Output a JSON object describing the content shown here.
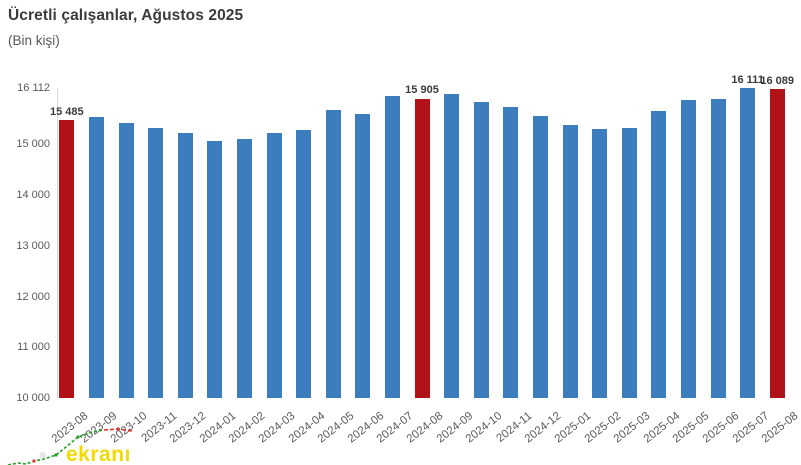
{
  "header": {
    "title": "Ücretli çalışanlar, Ağustos 2025",
    "subtitle": "(Bin kişi)"
  },
  "chart_data": {
    "type": "bar",
    "title": "Ücretli çalışanlar, Ağustos 2025",
    "unit_label": "(Bin kişi)",
    "categories": [
      "2023-08",
      "2023-09",
      "2023-10",
      "2023-11",
      "2023-12",
      "2024-01",
      "2024-02",
      "2024-03",
      "2024-04",
      "2024-05",
      "2024-06",
      "2024-07",
      "2024-08",
      "2024-09",
      "2024-10",
      "2024-11",
      "2024-12",
      "2025-01",
      "2025-02",
      "2025-03",
      "2025-04",
      "2025-05",
      "2025-06",
      "2025-07",
      "2025-08"
    ],
    "values": [
      15485,
      15550,
      15430,
      15320,
      15220,
      15060,
      15110,
      15230,
      15280,
      15680,
      15600,
      15960,
      15905,
      15990,
      15840,
      15730,
      15560,
      15390,
      15300,
      15330,
      15650,
      15880,
      15900,
      16111,
      16089
    ],
    "highlighted_indices": [
      0,
      12,
      24
    ],
    "data_labels": [
      {
        "index": 0,
        "text": "15 485"
      },
      {
        "index": 12,
        "text": "15 905"
      },
      {
        "index": 23,
        "text": "16 111"
      },
      {
        "index": 24,
        "text": "16 089"
      }
    ],
    "ylim": [
      10000,
      16112
    ],
    "yticks": [
      {
        "value": 16112,
        "label": "16 112"
      },
      {
        "value": 15000,
        "label": "15 000"
      },
      {
        "value": 14000,
        "label": "14 000"
      },
      {
        "value": 13000,
        "label": "13 000"
      },
      {
        "value": 12000,
        "label": "12 000"
      },
      {
        "value": 11000,
        "label": "11 000"
      },
      {
        "value": 10000,
        "label": "10 000"
      }
    ],
    "grid": false,
    "legend": null,
    "colors": {
      "bar_default": "#3b7dbd",
      "bar_highlight": "#b01218",
      "axis_text": "#5a5a5a",
      "title_text": "#3b3b3b",
      "axis_line": "#d8d8d8"
    }
  },
  "watermark": {
    "accent_text": "ekranı",
    "accent_color": "#f2da04",
    "faint_mark_color": "#c9c9c9",
    "sparkline_up_color": "#21a121",
    "sparkline_down_color": "#e03131"
  }
}
